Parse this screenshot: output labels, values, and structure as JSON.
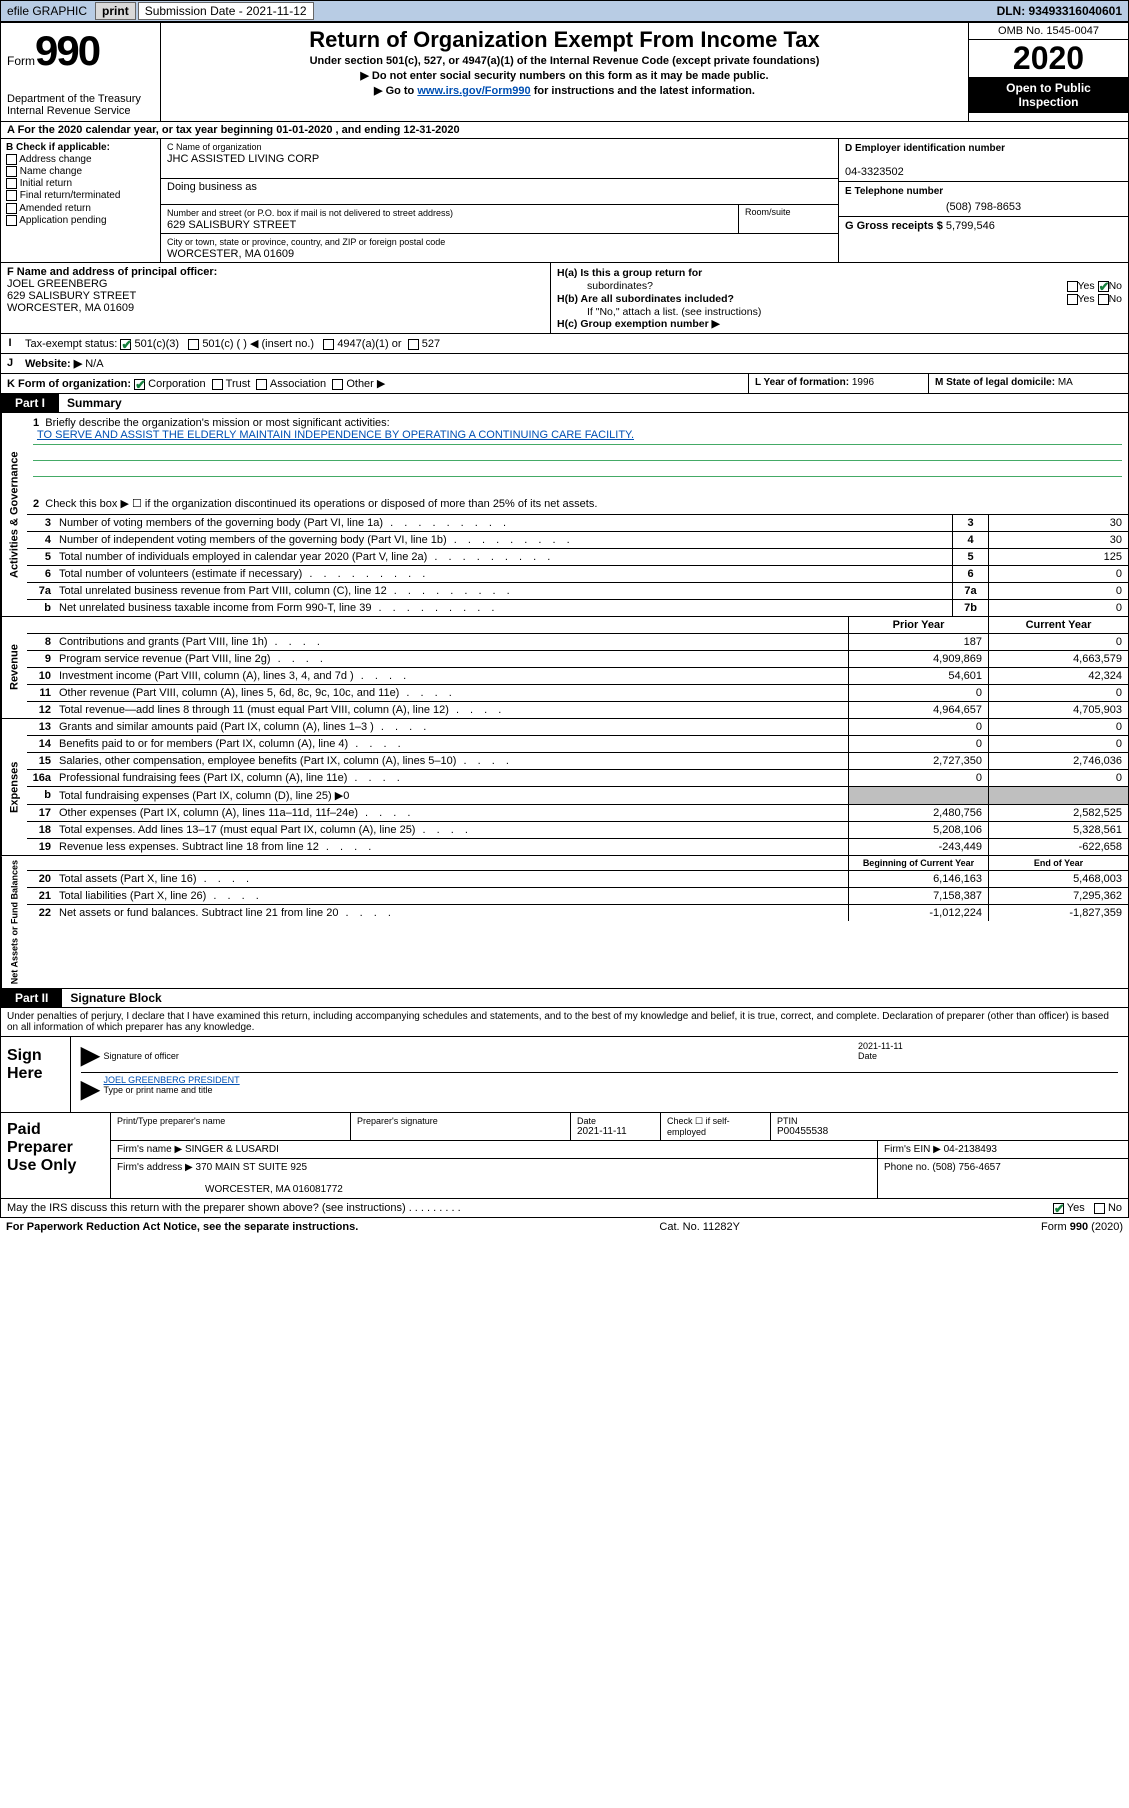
{
  "topbar": {
    "efile": "efile GRAPHIC",
    "print": "print",
    "sub_label": "Submission Date - 2021-11-12",
    "dln": "DLN: 93493316040601"
  },
  "header": {
    "form_word": "Form",
    "form_num": "990",
    "title": "Return of Organization Exempt From Income Tax",
    "sub": "Under section 501(c), 527, or 4947(a)(1) of the Internal Revenue Code (except private foundations)",
    "line1": "▶ Do not enter social security numbers on this form as it may be made public.",
    "line2_pre": "▶ Go to ",
    "line2_link": "www.irs.gov/Form990",
    "line2_post": " for instructions and the latest information.",
    "dept": "Department of the Treasury",
    "irs": "Internal Revenue Service",
    "omb": "OMB No. 1545-0047",
    "year": "2020",
    "open1": "Open to Public",
    "open2": "Inspection"
  },
  "lineA": "A For the 2020 calendar year, or tax year beginning 01-01-2020   , and ending 12-31-2020",
  "colB": {
    "hdr": "B Check if applicable:",
    "items": [
      "Address change",
      "Name change",
      "Initial return",
      "Final return/terminated",
      "Amended return",
      "Application pending"
    ]
  },
  "nameBox": {
    "lblC": "C Name of organization",
    "org": "JHC ASSISTED LIVING CORP",
    "dba_lbl": "Doing business as",
    "addr_lbl": "Number and street (or P.O. box if mail is not delivered to street address)",
    "addr": "629 SALISBURY STREET",
    "room_lbl": "Room/suite",
    "city_lbl": "City or town, state or province, country, and ZIP or foreign postal code",
    "city": "WORCESTER, MA  01609"
  },
  "colD": {
    "d_lbl": "D Employer identification number",
    "ein": "04-3323502",
    "e_lbl": "E Telephone number",
    "phone": "(508) 798-8653",
    "g_lbl": "G Gross receipts $ ",
    "gross": "5,799,546"
  },
  "rowF": {
    "lbl": "F Name and address of principal officer:",
    "name": "JOEL GREENBERG",
    "addr1": "629 SALISBURY STREET",
    "addr2": "WORCESTER, MA  01609"
  },
  "rowH": {
    "a": "H(a)  Is this a group return for",
    "a2": "subordinates?",
    "b": "H(b)  Are all subordinates included?",
    "note": "If \"No,\" attach a list. (see instructions)",
    "c": "H(c)  Group exemption number ▶",
    "yes": "Yes",
    "no": "No"
  },
  "rowI": {
    "lbl": "Tax-exempt status:",
    "o1": "501(c)(3)",
    "o2": "501(c) (  ) ◀ (insert no.)",
    "o3": "4947(a)(1) or",
    "o4": "527"
  },
  "rowJ": {
    "lbl": "Website: ▶",
    "val": "N/A"
  },
  "rowK": {
    "lbl": "K Form of organization:",
    "o1": "Corporation",
    "o2": "Trust",
    "o3": "Association",
    "o4": "Other ▶"
  },
  "rowL": {
    "lbl": "L Year of formation: ",
    "val": "1996"
  },
  "rowM": {
    "lbl": "M State of legal domicile: ",
    "val": "MA"
  },
  "part1": {
    "tab": "Part I",
    "title": "Summary"
  },
  "gov": {
    "side": "Activities & Governance",
    "l1": "Briefly describe the organization's mission or most significant activities:",
    "mission": "TO SERVE AND ASSIST THE ELDERLY MAINTAIN INDEPENDENCE BY OPERATING A CONTINUING CARE FACILITY.",
    "l2": "Check this box ▶ ☐ if the organization discontinued its operations or disposed of more than 25% of its net assets.",
    "rows": [
      {
        "n": "3",
        "t": "Number of voting members of the governing body (Part VI, line 1a)",
        "k": "3",
        "v": "30"
      },
      {
        "n": "4",
        "t": "Number of independent voting members of the governing body (Part VI, line 1b)",
        "k": "4",
        "v": "30"
      },
      {
        "n": "5",
        "t": "Total number of individuals employed in calendar year 2020 (Part V, line 2a)",
        "k": "5",
        "v": "125"
      },
      {
        "n": "6",
        "t": "Total number of volunteers (estimate if necessary)",
        "k": "6",
        "v": "0"
      },
      {
        "n": "7a",
        "t": "Total unrelated business revenue from Part VIII, column (C), line 12",
        "k": "7a",
        "v": "0"
      },
      {
        "n": "b",
        "t": "Net unrelated business taxable income from Form 990-T, line 39",
        "k": "7b",
        "v": "0"
      }
    ]
  },
  "rev": {
    "side": "Revenue",
    "hdr_prior": "Prior Year",
    "hdr_curr": "Current Year",
    "rows": [
      {
        "n": "8",
        "t": "Contributions and grants (Part VIII, line 1h)",
        "p": "187",
        "c": "0"
      },
      {
        "n": "9",
        "t": "Program service revenue (Part VIII, line 2g)",
        "p": "4,909,869",
        "c": "4,663,579"
      },
      {
        "n": "10",
        "t": "Investment income (Part VIII, column (A), lines 3, 4, and 7d )",
        "p": "54,601",
        "c": "42,324"
      },
      {
        "n": "11",
        "t": "Other revenue (Part VIII, column (A), lines 5, 6d, 8c, 9c, 10c, and 11e)",
        "p": "0",
        "c": "0"
      },
      {
        "n": "12",
        "t": "Total revenue—add lines 8 through 11 (must equal Part VIII, column (A), line 12)",
        "p": "4,964,657",
        "c": "4,705,903"
      }
    ]
  },
  "exp": {
    "side": "Expenses",
    "rows": [
      {
        "n": "13",
        "t": "Grants and similar amounts paid (Part IX, column (A), lines 1–3 )",
        "p": "0",
        "c": "0"
      },
      {
        "n": "14",
        "t": "Benefits paid to or for members (Part IX, column (A), line 4)",
        "p": "0",
        "c": "0"
      },
      {
        "n": "15",
        "t": "Salaries, other compensation, employee benefits (Part IX, column (A), lines 5–10)",
        "p": "2,727,350",
        "c": "2,746,036"
      },
      {
        "n": "16a",
        "t": "Professional fundraising fees (Part IX, column (A), line 11e)",
        "p": "0",
        "c": "0"
      },
      {
        "n": "b",
        "t": "Total fundraising expenses (Part IX, column (D), line 25) ▶0",
        "grey": true
      },
      {
        "n": "17",
        "t": "Other expenses (Part IX, column (A), lines 11a–11d, 11f–24e)",
        "p": "2,480,756",
        "c": "2,582,525"
      },
      {
        "n": "18",
        "t": "Total expenses. Add lines 13–17 (must equal Part IX, column (A), line 25)",
        "p": "5,208,106",
        "c": "5,328,561"
      },
      {
        "n": "19",
        "t": "Revenue less expenses. Subtract line 18 from line 12",
        "p": "-243,449",
        "c": "-622,658"
      }
    ]
  },
  "net": {
    "side": "Net Assets or Fund Balances",
    "hdr_prior": "Beginning of Current Year",
    "hdr_curr": "End of Year",
    "rows": [
      {
        "n": "20",
        "t": "Total assets (Part X, line 16)",
        "p": "6,146,163",
        "c": "5,468,003"
      },
      {
        "n": "21",
        "t": "Total liabilities (Part X, line 26)",
        "p": "7,158,387",
        "c": "7,295,362"
      },
      {
        "n": "22",
        "t": "Net assets or fund balances. Subtract line 21 from line 20",
        "p": "-1,012,224",
        "c": "-1,827,359"
      }
    ]
  },
  "part2": {
    "tab": "Part II",
    "title": "Signature Block"
  },
  "decl": "Under penalties of perjury, I declare that I have examined this return, including accompanying schedules and statements, and to the best of my knowledge and belief, it is true, correct, and complete. Declaration of preparer (other than officer) is based on all information of which preparer has any knowledge.",
  "sign": {
    "lbl": "Sign Here",
    "sig_of_officer": "Signature of officer",
    "date_lbl": "Date",
    "date": "2021-11-11",
    "typed": "JOEL GREENBERG  PRESIDENT",
    "typed_lbl": "Type or print name and title"
  },
  "paid": {
    "lbl": "Paid Preparer Use Only",
    "h1": "Print/Type preparer's name",
    "h2": "Preparer's signature",
    "h3": "Date",
    "h3v": "2021-11-11",
    "h4": "Check ☐ if self-employed",
    "h5": "PTIN",
    "ptin": "P00455538",
    "firm_lbl": "Firm's name    ▶ ",
    "firm": "SINGER & LUSARDI",
    "ein_lbl": "Firm's EIN ▶ ",
    "ein": "04-2138493",
    "addr_lbl": "Firm's address ▶ ",
    "addr1": "370 MAIN ST SUITE 925",
    "addr2": "WORCESTER, MA  016081772",
    "phone_lbl": "Phone no. ",
    "phone": "(508) 756-4657"
  },
  "discuss": {
    "q": "May the IRS discuss this return with the preparer shown above? (see instructions)",
    "yes": "Yes",
    "no": "No"
  },
  "footer": {
    "left": "For Paperwork Reduction Act Notice, see the separate instructions.",
    "mid": "Cat. No. 11282Y",
    "right": "Form 990 (2020)"
  },
  "dots": " .   .   .   .   .   .   .   .   ."
}
